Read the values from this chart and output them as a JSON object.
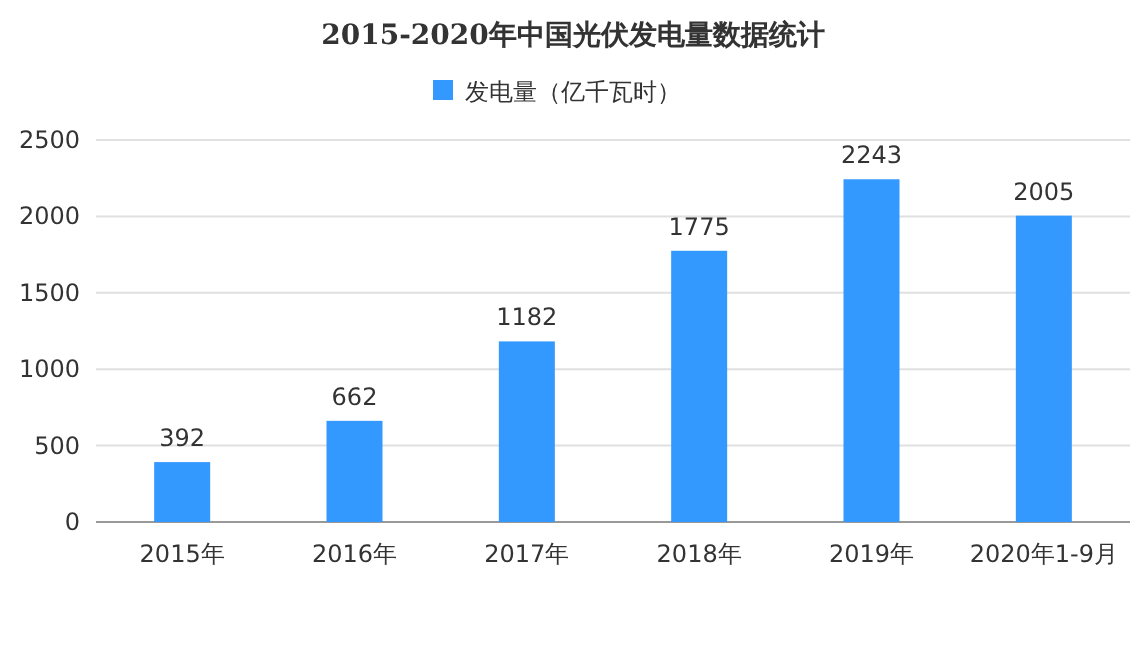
{
  "chart_data": {
    "type": "bar",
    "title": "2015-2020年中国光伏发电量数据统计",
    "categories": [
      "2015年",
      "2016年",
      "2017年",
      "2018年",
      "2019年",
      "2020年1-9月"
    ],
    "series": [
      {
        "name": "发电量（亿千瓦时）",
        "color": "#3399ff",
        "values": [
          392,
          662,
          1182,
          1775,
          2243,
          2005
        ]
      }
    ],
    "ylim": [
      0,
      2500
    ],
    "yticks": [
      0,
      500,
      1000,
      1500,
      2000,
      2500
    ],
    "grid": "y",
    "legend": "top",
    "data_labels": true
  }
}
